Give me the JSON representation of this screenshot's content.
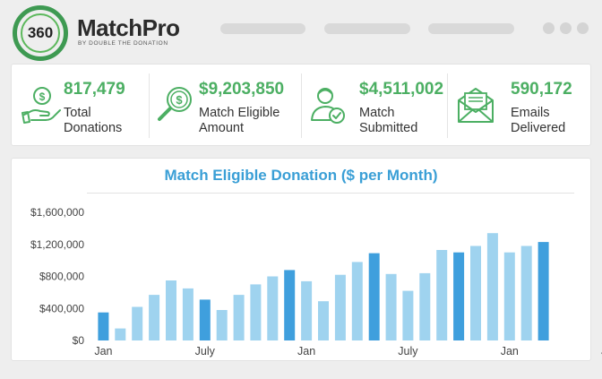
{
  "brand": {
    "badge": "360",
    "name": "MatchPro",
    "tagline": "BY DOUBLE THE DONATION"
  },
  "stats": [
    {
      "value": "817,479",
      "label_line1": "Total",
      "label_line2": "Donations",
      "icon": "money-hand-icon"
    },
    {
      "value": "$9,203,850",
      "label_line1": "Match Eligible",
      "label_line2": "Amount",
      "icon": "magnifier-dollar-icon"
    },
    {
      "value": "$4,511,002",
      "label_line1": "Match",
      "label_line2": "Submitted",
      "icon": "person-check-icon"
    },
    {
      "value": "590,172",
      "label_line1": "Emails",
      "label_line2": "Delivered",
      "icon": "envelope-icon"
    }
  ],
  "colors": {
    "accent_green": "#4caf63",
    "title_blue": "#3a9fd6",
    "bar_light": "#9fd3ef",
    "bar_dark": "#3f9fdd"
  },
  "chart_data": {
    "type": "bar",
    "title": "Match Eligible Donation ($ per Month)",
    "xlabel": "",
    "ylabel": "",
    "ylim": [
      0,
      1600000
    ],
    "yticks": [
      "$0",
      "$400,000",
      "$800,000",
      "$1,200,000",
      "$1,600,000"
    ],
    "ytick_values": [
      0,
      400000,
      800000,
      1200000,
      1600000
    ],
    "xtick_labels": [
      "Jan",
      "July",
      "Jan",
      "July",
      "Jan",
      "July"
    ],
    "xtick_indices": [
      0,
      6,
      12,
      18,
      24,
      30
    ],
    "grid": false,
    "values": [
      350000,
      150000,
      420000,
      570000,
      750000,
      650000,
      510000,
      380000,
      570000,
      700000,
      800000,
      880000,
      740000,
      490000,
      820000,
      980000,
      1090000,
      830000,
      620000,
      840000,
      1130000,
      1100000,
      1180000,
      1340000,
      1100000,
      1180000,
      1230000
    ],
    "highlight": [
      true,
      false,
      false,
      false,
      false,
      false,
      true,
      false,
      false,
      false,
      false,
      true,
      false,
      false,
      false,
      false,
      true,
      false,
      false,
      false,
      false,
      true,
      false,
      false,
      false,
      false,
      true
    ]
  }
}
